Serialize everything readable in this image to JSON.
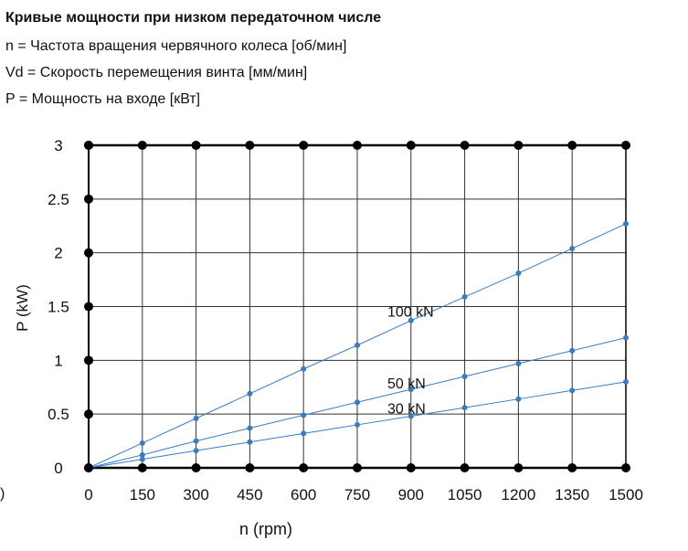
{
  "header": {
    "title": "Кривые мощности при низком передаточном числе",
    "legend_n": "n = Частота вращения червячного колеса [об/мин]",
    "legend_vd": "Vd = Скорость перемещения винта [мм/мин]",
    "legend_p": "P = Мощность на входе [кВт]"
  },
  "edge_mark": ")",
  "colors": {
    "series": "#3a7cc0",
    "grid": "#333333",
    "axis": "#000000",
    "dots": "#000000"
  },
  "chart_data": {
    "type": "line",
    "xlabel": "n  (rpm)",
    "ylabel": "P (kW)",
    "xlim": [
      0,
      1500
    ],
    "ylim": [
      0,
      3
    ],
    "x_ticks": [
      "0",
      "150",
      "300",
      "450",
      "600",
      "750",
      "900",
      "1050",
      "1200",
      "1350",
      "1500"
    ],
    "y_ticks": [
      "0",
      "0.5",
      "1",
      "1.5",
      "2",
      "2.5",
      "3"
    ],
    "grid": true,
    "x": [
      0,
      150,
      300,
      450,
      600,
      750,
      900,
      1050,
      1200,
      1350,
      1500
    ],
    "series": [
      {
        "name": "100 kN",
        "label_at": [
          750,
          1.45
        ],
        "values": [
          0,
          0.23,
          0.46,
          0.69,
          0.92,
          1.14,
          1.37,
          1.59,
          1.81,
          2.04,
          2.27
        ]
      },
      {
        "name": "50 kN",
        "label_at": [
          750,
          0.78
        ],
        "values": [
          0,
          0.12,
          0.25,
          0.37,
          0.49,
          0.61,
          0.73,
          0.85,
          0.97,
          1.09,
          1.21
        ]
      },
      {
        "name": "30 kN",
        "label_at": [
          750,
          0.55
        ],
        "values": [
          0,
          0.08,
          0.16,
          0.24,
          0.32,
          0.4,
          0.48,
          0.56,
          0.64,
          0.72,
          0.8
        ]
      }
    ]
  }
}
